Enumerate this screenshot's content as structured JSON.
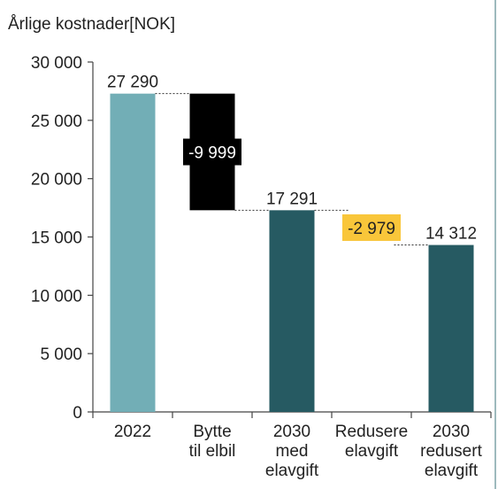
{
  "chart_data": {
    "type": "bar",
    "subtype": "waterfall",
    "ylabel": "Årlige kostnader[NOK]",
    "ylim": [
      0,
      30000
    ],
    "ytick_labels": [
      "0",
      "5 000",
      "10 000",
      "15 000",
      "20 000",
      "25 000",
      "30 000"
    ],
    "ytick_values": [
      0,
      5000,
      10000,
      15000,
      20000,
      25000,
      30000
    ],
    "grid": false,
    "legend": "none",
    "bars": [
      {
        "category": [
          "2022"
        ],
        "kind": "total",
        "start": 0,
        "end": 27290,
        "label": "27 290",
        "color": "#72aeb6"
      },
      {
        "category": [
          "Bytte",
          "til elbil"
        ],
        "kind": "delta",
        "start": 27290,
        "end": 17291,
        "label": "-9 999",
        "color": "#000000",
        "label_text_color": "#ffffff"
      },
      {
        "category": [
          "2030",
          "med",
          "elavgift"
        ],
        "kind": "total",
        "start": 0,
        "end": 17291,
        "label": "17 291",
        "color": "#265a62"
      },
      {
        "category": [
          "Redusere",
          "elavgift"
        ],
        "kind": "delta",
        "start": 17291,
        "end": 14312,
        "label": "-2 979",
        "color": "#ffffff",
        "label_bg": "#f9c63a",
        "label_text_color": "#222222"
      },
      {
        "category": [
          "2030",
          "redusert",
          "elavgift"
        ],
        "kind": "total",
        "start": 0,
        "end": 14312,
        "label": "14 312",
        "color": "#265a62"
      }
    ]
  }
}
